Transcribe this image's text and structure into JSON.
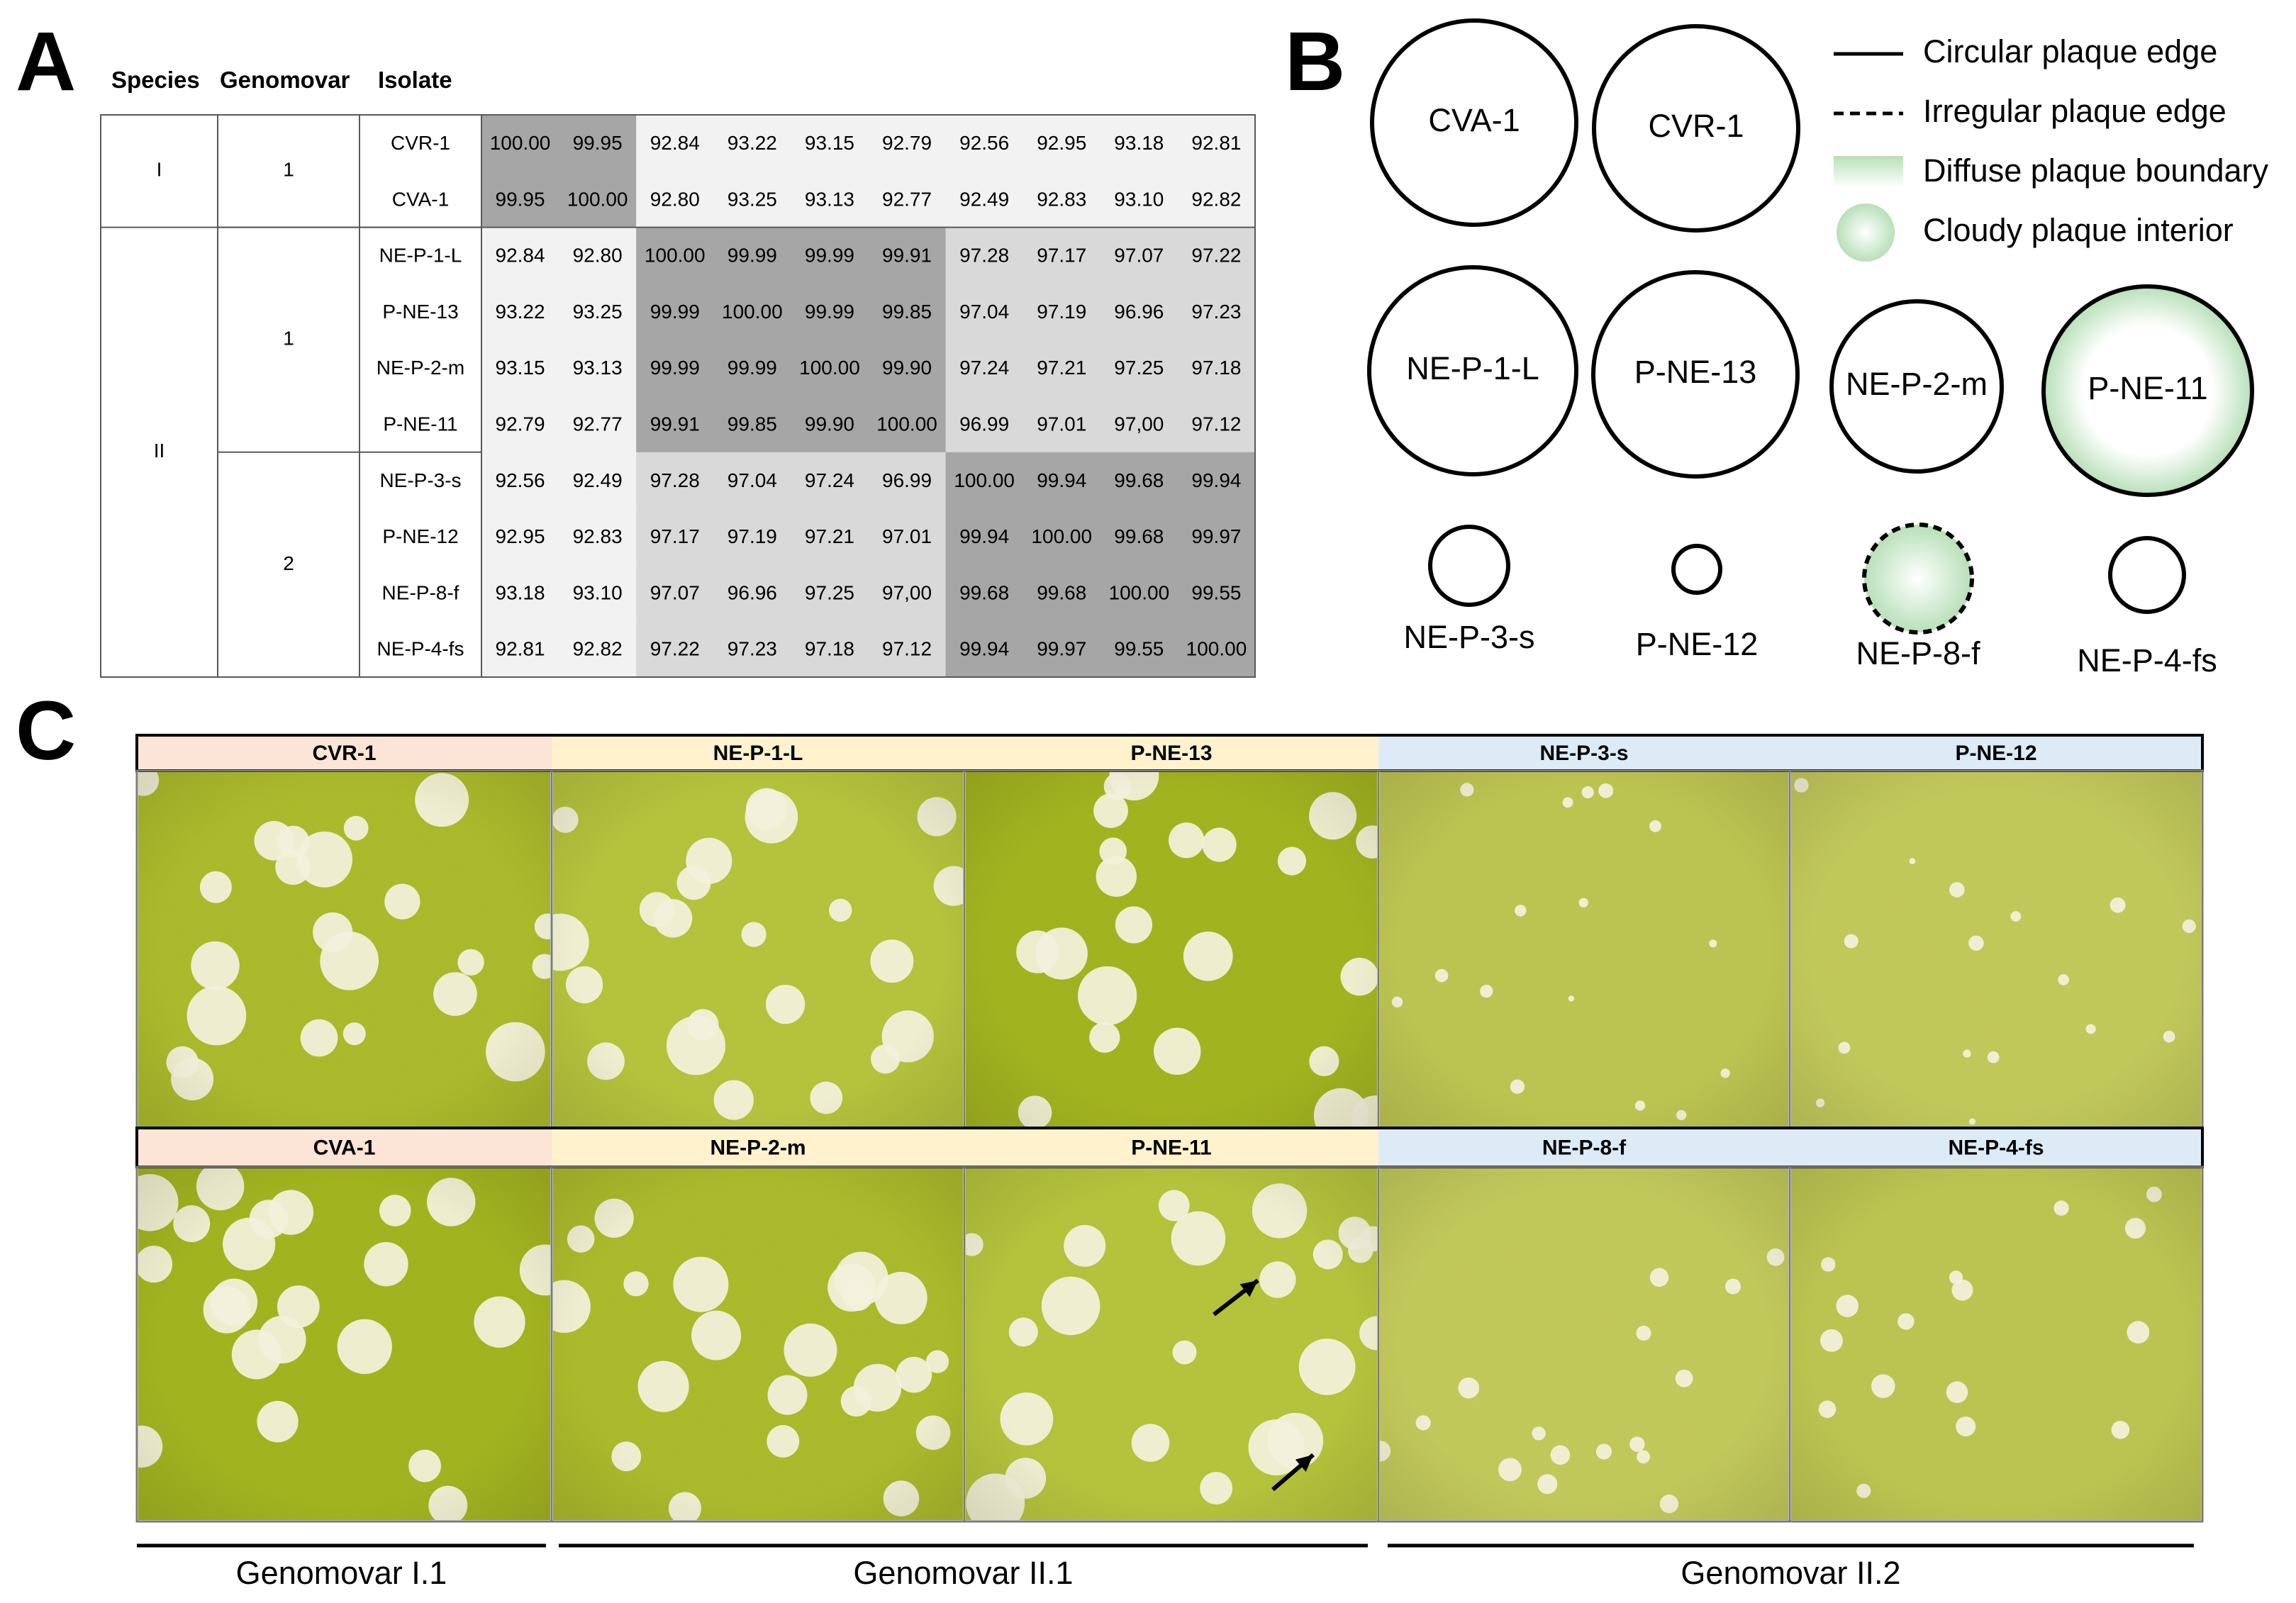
{
  "panels": {
    "A": "A",
    "B": "B",
    "C": "C"
  },
  "table": {
    "headers": {
      "species": "Species",
      "genomovar": "Genomovar",
      "isolate": "Isolate"
    },
    "species_groups": [
      {
        "label": "I",
        "rows": [
          0,
          1
        ]
      },
      {
        "label": "II",
        "rows": [
          2,
          9
        ]
      }
    ],
    "genomovar_groups": [
      {
        "label": "1",
        "rows": [
          0,
          1
        ]
      },
      {
        "label": "1",
        "rows": [
          2,
          5
        ]
      },
      {
        "label": "2",
        "rows": [
          6,
          9
        ]
      }
    ],
    "isolates": [
      "CVR-1",
      "CVA-1",
      "NE-P-1-L",
      "P-NE-13",
      "NE-P-2-m",
      "P-NE-11",
      "NE-P-3-s",
      "P-NE-12",
      "NE-P-8-f",
      "NE-P-4-fs"
    ],
    "values": [
      [
        "100.00",
        "99.95",
        "92.84",
        "93.22",
        "93.15",
        "92.79",
        "92.56",
        "92.95",
        "93.18",
        "92.81"
      ],
      [
        "99.95",
        "100.00",
        "92.80",
        "93.25",
        "93.13",
        "92.77",
        "92.49",
        "92.83",
        "93.10",
        "92.82"
      ],
      [
        "92.84",
        "92.80",
        "100.00",
        "99.99",
        "99.99",
        "99.91",
        "97.28",
        "97.17",
        "97.07",
        "97.22"
      ],
      [
        "93.22",
        "93.25",
        "99.99",
        "100.00",
        "99.99",
        "99.85",
        "97.04",
        "97.19",
        "96.96",
        "97.23"
      ],
      [
        "93.15",
        "93.13",
        "99.99",
        "99.99",
        "100.00",
        "99.90",
        "97.24",
        "97.21",
        "97.25",
        "97.18"
      ],
      [
        "92.79",
        "92.77",
        "99.91",
        "99.85",
        "99.90",
        "100.00",
        "96.99",
        "97.01",
        "97,00",
        "97.12"
      ],
      [
        "92.56",
        "92.49",
        "97.28",
        "97.04",
        "97.24",
        "96.99",
        "100.00",
        "99.94",
        "99.68",
        "99.94"
      ],
      [
        "92.95",
        "92.83",
        "97.17",
        "97.19",
        "97.21",
        "97.01",
        "99.94",
        "100.00",
        "99.68",
        "99.97"
      ],
      [
        "93.18",
        "93.10",
        "97.07",
        "96.96",
        "97.25",
        "97,00",
        "99.68",
        "99.68",
        "100.00",
        "99.55"
      ],
      [
        "92.81",
        "92.82",
        "97.22",
        "97.23",
        "97.18",
        "97.12",
        "99.94",
        "99.97",
        "99.55",
        "100.00"
      ]
    ],
    "colors": {
      "high": "#a6a6a6",
      "mid": "#d9d9d9",
      "low": "#f2f2f2"
    }
  },
  "panel_b": {
    "plaques": [
      {
        "label": "CVA-1",
        "edge": "circular",
        "interior": "clear",
        "size": "large"
      },
      {
        "label": "CVR-1",
        "edge": "circular",
        "interior": "clear",
        "size": "large"
      },
      {
        "label": "NE-P-1-L",
        "edge": "circular",
        "interior": "clear",
        "size": "large"
      },
      {
        "label": "P-NE-13",
        "edge": "circular",
        "interior": "clear",
        "size": "large"
      },
      {
        "label": "NE-P-2-m",
        "edge": "circular",
        "interior": "clear",
        "size": "medium"
      },
      {
        "label": "P-NE-11",
        "edge": "circular",
        "interior": "diffuse",
        "size": "large"
      },
      {
        "label": "NE-P-3-s",
        "edge": "circular",
        "interior": "clear",
        "size": "small"
      },
      {
        "label": "P-NE-12",
        "edge": "circular",
        "interior": "clear",
        "size": "small"
      },
      {
        "label": "NE-P-8-f",
        "edge": "irregular",
        "interior": "cloudy",
        "size": "small"
      },
      {
        "label": "NE-P-4-fs",
        "edge": "circular",
        "interior": "clear",
        "size": "small"
      }
    ],
    "legend": [
      {
        "label": "Circular plaque edge",
        "symbol": "solid-line"
      },
      {
        "label": "Irregular plaque edge",
        "symbol": "dashed-line"
      },
      {
        "label": "Diffuse plaque boundary",
        "symbol": "green-gradient-bar"
      },
      {
        "label": "Cloudy plaque interior",
        "symbol": "green-cloudy-circle"
      }
    ],
    "green": "#c6e8c6"
  },
  "panel_c": {
    "top_row": [
      {
        "label": "CVR-1",
        "color": "#fce4d6"
      },
      {
        "label": "NE-P-1-L",
        "color": "#fff2cc"
      },
      {
        "label": "P-NE-13",
        "color": "#fff2cc"
      },
      {
        "label": "NE-P-3-s",
        "color": "#ddebf7"
      },
      {
        "label": "P-NE-12",
        "color": "#ddebf7"
      }
    ],
    "bottom_row": [
      {
        "label": "CVA-1",
        "color": "#fce4d6"
      },
      {
        "label": "NE-P-2-m",
        "color": "#fff2cc"
      },
      {
        "label": "P-NE-11",
        "color": "#fff2cc"
      },
      {
        "label": "NE-P-8-f",
        "color": "#ddebf7"
      },
      {
        "label": "NE-P-4-fs",
        "color": "#ddebf7"
      }
    ],
    "genomovars": [
      "Genomovar I.1",
      "Genomovar II.1",
      "Genomovar II.2"
    ],
    "agar_colors": [
      "#a9b827",
      "#b3c239",
      "#9fb11a",
      "#c2c85a",
      "#bcc450"
    ]
  }
}
